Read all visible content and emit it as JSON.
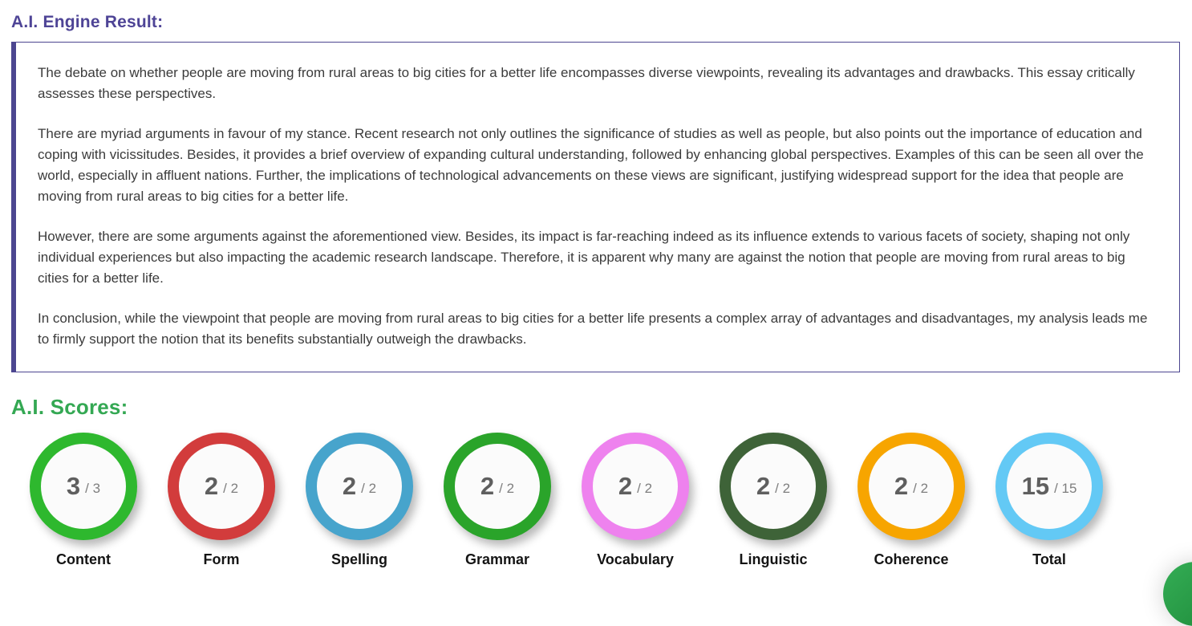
{
  "page": {
    "engine_result_heading": "A.I. Engine Result:",
    "scores_heading": "A.I. Scores:"
  },
  "essay": {
    "paragraphs": [
      "The debate on whether people are moving from rural areas to big cities for a better life encompasses diverse viewpoints, revealing its advantages and drawbacks. This essay critically assesses these perspectives.",
      "There are myriad arguments in favour of my stance. Recent research not only outlines the significance of studies as well as people, but also points out the importance of education and coping with vicissitudes. Besides, it provides a brief overview of expanding cultural understanding, followed by enhancing global perspectives. Examples of this can be seen all over the world, especially in affluent nations. Further, the implications of technological advancements on these views are significant, justifying widespread support for the idea that people are moving from rural areas to big cities for a better life.",
      "However, there are some arguments against the aforementioned view. Besides, its impact is far-reaching indeed as its influence extends to various facets of society, shaping not only individual experiences but also impacting the academic research landscape. Therefore, it is apparent why many are against the notion that people are moving from rural areas to big cities for a better life.",
      "In conclusion, while the viewpoint that people are moving from rural areas to big cities for a better life presents a complex array of advantages and disadvantages, my analysis leads me to firmly support the notion that its benefits substantially outweigh the drawbacks."
    ]
  },
  "scores": {
    "items": [
      {
        "label": "Content",
        "value": "3",
        "max": "3",
        "color": "#2eb82e"
      },
      {
        "label": "Form",
        "value": "2",
        "max": "2",
        "color": "#d23c3c"
      },
      {
        "label": "Spelling",
        "value": "2",
        "max": "2",
        "color": "#47a4cc"
      },
      {
        "label": "Grammar",
        "value": "2",
        "max": "2",
        "color": "#2aa42a"
      },
      {
        "label": "Vocabulary",
        "value": "2",
        "max": "2",
        "color": "#ee82ee"
      },
      {
        "label": "Linguistic",
        "value": "2",
        "max": "2",
        "color": "#3e6338"
      },
      {
        "label": "Coherence",
        "value": "2",
        "max": "2",
        "color": "#f7a500"
      },
      {
        "label": "Total",
        "value": "15",
        "max": "15",
        "color": "#63c9f5"
      }
    ],
    "denominator_separator": "/"
  },
  "colors": {
    "heading_purple": "#4e4496",
    "heading_green": "#34a853",
    "essay_box_border": "#4c4690",
    "fab_green": "#2ea44f"
  }
}
